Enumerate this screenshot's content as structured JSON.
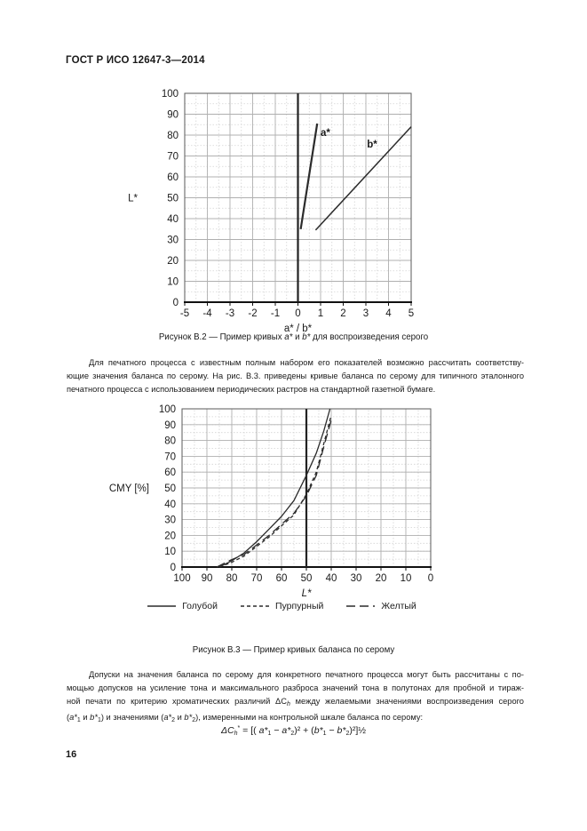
{
  "header": {
    "title": "ГОСТ Р ИСО 12647-3—2014"
  },
  "footer": {
    "page_number": "16"
  },
  "paragraph1": {
    "line1": "Для печатного процесса с известным полным набором его показателей возможно рассчитать соответству-",
    "line2": "ющие значения баланса по серому. На рис. В.3. приведены кривые баланса по серому для типичного эталонного",
    "line3": "печатного процесса с использованием периодических растров на стандартной газетной бумаге."
  },
  "figure_b2": {
    "caption": {
      "prefix": "Рисунок В.2 — Пример кривых ",
      "var1": "a*",
      "mid": " и ",
      "var2": "b*",
      "suffix": " для воспроизведения серого"
    }
  },
  "figure_b3": {
    "caption": "Рисунок В.3 — Пример кривых баланса по серому",
    "legend": [
      {
        "label": "Голубой",
        "style": "solid"
      },
      {
        "label": "Пурпурный",
        "style": "dashed"
      },
      {
        "label": "Желтый",
        "style": "longdash"
      }
    ]
  },
  "paragraph2": {
    "line1": "Допуски на значения баланса по серому для конкретного печатного процесса могут быть рассчитаны с по-",
    "line2": "мощью допусков на усиление тона и максимального разброса значений тона в полутонах для пробной и тираж-",
    "line3a": "ной печати по критерию хроматических различий ΔC",
    "line3sub": "h",
    "line3b": " между желаемыми значениями воспроизведения серого",
    "line4": {
      "p1": "(",
      "v1": "a*",
      "s1": "1",
      "p2": " и ",
      "v2": "b*",
      "s2": "1",
      "p3": ") и значениями (",
      "v3": "a*",
      "s3": "2",
      "p4": " и ",
      "v4": "b*",
      "s4": "2",
      "p5": "), измеренными на контрольной шкале баланса по серому:"
    }
  },
  "formula": {
    "p1": "ΔC",
    "sub": "h",
    "sup": "*",
    "p2": " = [( ",
    "a1": "a*",
    "a1s": "1",
    "m1": " − ",
    "a2": "a*",
    "a2s": "2",
    "p3": ")² + (",
    "b1": "b*",
    "b1s": "1",
    "m2": " − ",
    "b2": "b*",
    "b2s": "2",
    "p4": ")²]",
    "half": "½"
  },
  "chart_data": [
    {
      "type": "line",
      "title": "",
      "xlabel": "a* / b*",
      "ylabel": "L*",
      "xlabel_style": "normal",
      "xlim": [
        -5,
        5
      ],
      "ylim": [
        0,
        100
      ],
      "x_ticks": [
        -5,
        -4,
        -3,
        -2,
        -1,
        0,
        1,
        2,
        3,
        4,
        5
      ],
      "y_ticks": [
        0,
        10,
        20,
        30,
        40,
        50,
        60,
        70,
        80,
        90,
        100
      ],
      "x_minor_step": 0.5,
      "y_minor_step": 5,
      "grid": true,
      "legend_position": "none",
      "emphasis_vlines": [
        0
      ],
      "series": [
        {
          "name": "a*",
          "style": "solid",
          "width": 2.2,
          "points": [
            [
              0.12,
              35
            ],
            [
              0.85,
              85.5
            ]
          ]
        },
        {
          "name": "b*",
          "style": "solid",
          "width": 1.5,
          "points": [
            [
              0.78,
              34.5
            ],
            [
              5.0,
              84
            ]
          ]
        }
      ],
      "annotations": [
        {
          "text": "a*",
          "x": 1.0,
          "y": 79.5
        },
        {
          "text": "b*",
          "x": 3.05,
          "y": 74
        }
      ]
    },
    {
      "type": "line",
      "title": "",
      "xlabel": "L*",
      "ylabel": "CMY [%]",
      "xlabel_style": "italic",
      "xlim": [
        100,
        0
      ],
      "ylim": [
        0,
        100
      ],
      "x_ticks": [
        100,
        90,
        80,
        70,
        60,
        50,
        40,
        30,
        20,
        10,
        0
      ],
      "y_ticks": [
        0,
        10,
        20,
        30,
        40,
        50,
        60,
        70,
        80,
        90,
        100
      ],
      "x_minor_step": 5,
      "y_minor_step": 5,
      "grid": true,
      "legend_position": "bottom",
      "emphasis_vlines": [
        50
      ],
      "series": [
        {
          "name": "Голубой",
          "style": "solid",
          "width": 1.3,
          "points": [
            [
              85,
              0
            ],
            [
              80,
              4
            ],
            [
              75,
              9
            ],
            [
              70,
              16
            ],
            [
              65,
              24
            ],
            [
              60,
              32
            ],
            [
              55,
              42
            ],
            [
              50,
              58
            ],
            [
              46,
              72
            ],
            [
              43,
              86
            ],
            [
              40.5,
              100
            ]
          ]
        },
        {
          "name": "Пурпурный",
          "style": "dashed",
          "width": 1.3,
          "points": [
            [
              85,
              0
            ],
            [
              80,
              3
            ],
            [
              75,
              7
            ],
            [
              70,
              13
            ],
            [
              65,
              19
            ],
            [
              60,
              26
            ],
            [
              55,
              33
            ],
            [
              50,
              46
            ],
            [
              46,
              60
            ],
            [
              43,
              78
            ],
            [
              40,
              96
            ]
          ]
        },
        {
          "name": "Желтый",
          "style": "longdash",
          "width": 1.3,
          "points": [
            [
              86,
              0
            ],
            [
              81,
              4
            ],
            [
              75,
              8
            ],
            [
              70,
              14
            ],
            [
              65,
              20
            ],
            [
              60,
              27
            ],
            [
              55,
              34
            ],
            [
              50,
              45
            ],
            [
              46,
              58
            ],
            [
              43,
              76
            ],
            [
              40,
              93
            ]
          ]
        }
      ]
    }
  ]
}
